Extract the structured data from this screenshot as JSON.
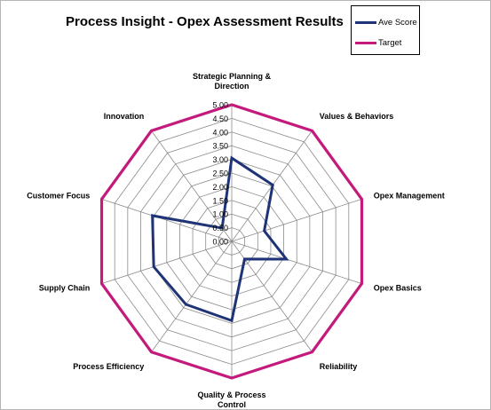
{
  "chart_data": {
    "type": "radar",
    "title": "Process Insight - Opex Assessment Results",
    "categories": [
      "Strategic Planning & Direction",
      "Values & Behaviors",
      "Opex Management",
      "Opex Basics",
      "Reliability",
      "Quality & Process Control",
      "Process Efficiency",
      "Supply Chain",
      "Customer Focus",
      "Innovation"
    ],
    "category_lines": [
      [
        "Strategic Planning  &",
        "Direction"
      ],
      [
        "Values & Behaviors"
      ],
      [
        "Opex Management"
      ],
      [
        "Opex Basics"
      ],
      [
        "Reliability"
      ],
      [
        "Quality  & Process",
        "Control"
      ],
      [
        "Process Efficiency"
      ],
      [
        "Supply Chain"
      ],
      [
        "Customer Focus"
      ],
      [
        "Innovation"
      ]
    ],
    "series": [
      {
        "name": "Ave Score",
        "color": "#1f3477",
        "values": [
          3.05,
          2.55,
          1.25,
          2.1,
          0.8,
          2.9,
          2.85,
          3.0,
          3.05,
          0.6
        ]
      },
      {
        "name": "Target",
        "color": "#c41a7c",
        "values": [
          5,
          5,
          5,
          5,
          5,
          5,
          5,
          5,
          5,
          5
        ]
      }
    ],
    "r_ticks": [
      "0.00",
      "0.50",
      "1.00",
      "1.50",
      "2.00",
      "2.50",
      "3.00",
      "3.50",
      "4.00",
      "4.50",
      "5.00"
    ],
    "r_range": [
      0,
      5
    ],
    "grid": true,
    "legend_position": "top-right"
  }
}
